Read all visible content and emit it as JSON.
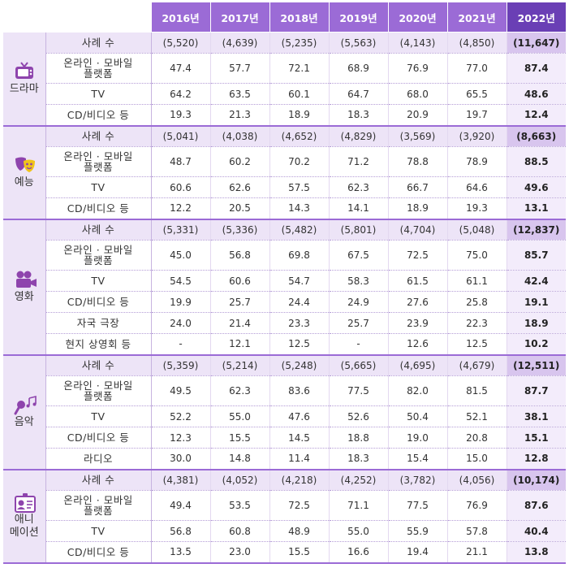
{
  "header": {
    "years": [
      "2016년",
      "2017년",
      "2018년",
      "2019년",
      "2020년",
      "2021년",
      "2022년"
    ]
  },
  "colors": {
    "header": "#9b6bd6",
    "header_latest": "#6a3fb5",
    "count_row": "#ede4f7",
    "icon": "#8e44ad"
  },
  "sections": [
    {
      "label": "드라마",
      "icon": "tv-icon",
      "rows": [
        {
          "label": "사례 수",
          "values": [
            "(5,520)",
            "(4,639)",
            "(5,235)",
            "(5,563)",
            "(4,143)",
            "(4,850)",
            "(11,647)"
          ]
        },
        {
          "label": "온라인 · 모바일\n플랫폼",
          "values": [
            "47.4",
            "57.7",
            "72.1",
            "68.9",
            "76.9",
            "77.0",
            "87.4"
          ]
        },
        {
          "label": "TV",
          "values": [
            "64.2",
            "63.5",
            "60.1",
            "64.7",
            "68.0",
            "65.5",
            "48.6"
          ]
        },
        {
          "label": "CD/비디오 등",
          "values": [
            "19.3",
            "21.3",
            "18.9",
            "18.3",
            "20.9",
            "19.7",
            "12.4"
          ]
        }
      ]
    },
    {
      "label": "예능",
      "icon": "theater-masks-icon",
      "rows": [
        {
          "label": "사례 수",
          "values": [
            "(5,041)",
            "(4,038)",
            "(4,652)",
            "(4,829)",
            "(3,569)",
            "(3,920)",
            "(8,663)"
          ]
        },
        {
          "label": "온라인 · 모바일\n플랫폼",
          "values": [
            "48.7",
            "60.2",
            "70.2",
            "71.2",
            "78.8",
            "78.9",
            "88.5"
          ]
        },
        {
          "label": "TV",
          "values": [
            "60.6",
            "62.6",
            "57.5",
            "62.3",
            "66.7",
            "64.6",
            "49.6"
          ]
        },
        {
          "label": "CD/비디오 등",
          "values": [
            "12.2",
            "20.5",
            "14.3",
            "14.1",
            "18.9",
            "19.3",
            "13.1"
          ]
        }
      ]
    },
    {
      "label": "영화",
      "icon": "movie-camera-icon",
      "rows": [
        {
          "label": "사례 수",
          "values": [
            "(5,331)",
            "(5,336)",
            "(5,482)",
            "(5,801)",
            "(4,704)",
            "(5,048)",
            "(12,837)"
          ]
        },
        {
          "label": "온라인 · 모바일\n플랫폼",
          "values": [
            "45.0",
            "56.8",
            "69.8",
            "67.5",
            "72.5",
            "75.0",
            "85.7"
          ]
        },
        {
          "label": "TV",
          "values": [
            "54.5",
            "60.6",
            "54.7",
            "58.3",
            "61.5",
            "61.1",
            "42.4"
          ]
        },
        {
          "label": "CD/비디오 등",
          "values": [
            "19.9",
            "25.7",
            "24.4",
            "24.9",
            "27.6",
            "25.8",
            "19.1"
          ]
        },
        {
          "label": "자국 극장",
          "values": [
            "24.0",
            "21.4",
            "23.3",
            "25.7",
            "23.9",
            "22.3",
            "18.9"
          ]
        },
        {
          "label": "현지 상영회 등",
          "values": [
            "-",
            "12.1",
            "12.5",
            "-",
            "12.6",
            "12.5",
            "10.2"
          ]
        }
      ]
    },
    {
      "label": "음악",
      "icon": "microphone-music-icon",
      "rows": [
        {
          "label": "사례 수",
          "values": [
            "(5,359)",
            "(5,214)",
            "(5,248)",
            "(5,665)",
            "(4,695)",
            "(4,679)",
            "(12,511)"
          ]
        },
        {
          "label": "온라인 · 모바일\n플랫폼",
          "values": [
            "49.5",
            "62.3",
            "83.6",
            "77.5",
            "82.0",
            "81.5",
            "87.7"
          ]
        },
        {
          "label": "TV",
          "values": [
            "52.2",
            "55.0",
            "47.6",
            "52.6",
            "50.4",
            "52.1",
            "38.1"
          ]
        },
        {
          "label": "CD/비디오 등",
          "values": [
            "12.3",
            "15.5",
            "14.5",
            "18.8",
            "19.0",
            "20.8",
            "15.1"
          ]
        },
        {
          "label": "라디오",
          "values": [
            "30.0",
            "14.8",
            "11.4",
            "18.3",
            "15.4",
            "15.0",
            "12.8"
          ]
        }
      ]
    },
    {
      "label": "애니\n메이션",
      "icon": "character-badge-icon",
      "rows": [
        {
          "label": "사례 수",
          "values": [
            "(4,381)",
            "(4,052)",
            "(4,218)",
            "(4,252)",
            "(3,782)",
            "(4,056)",
            "(10,174)"
          ]
        },
        {
          "label": "온라인 · 모바일\n플랫폼",
          "values": [
            "49.4",
            "53.5",
            "72.5",
            "71.1",
            "77.5",
            "76.9",
            "87.6"
          ]
        },
        {
          "label": "TV",
          "values": [
            "56.8",
            "60.8",
            "48.9",
            "55.0",
            "55.9",
            "57.8",
            "40.4"
          ]
        },
        {
          "label": "CD/비디오 등",
          "values": [
            "13.5",
            "23.0",
            "15.5",
            "16.6",
            "19.4",
            "21.1",
            "13.8"
          ]
        }
      ]
    }
  ]
}
